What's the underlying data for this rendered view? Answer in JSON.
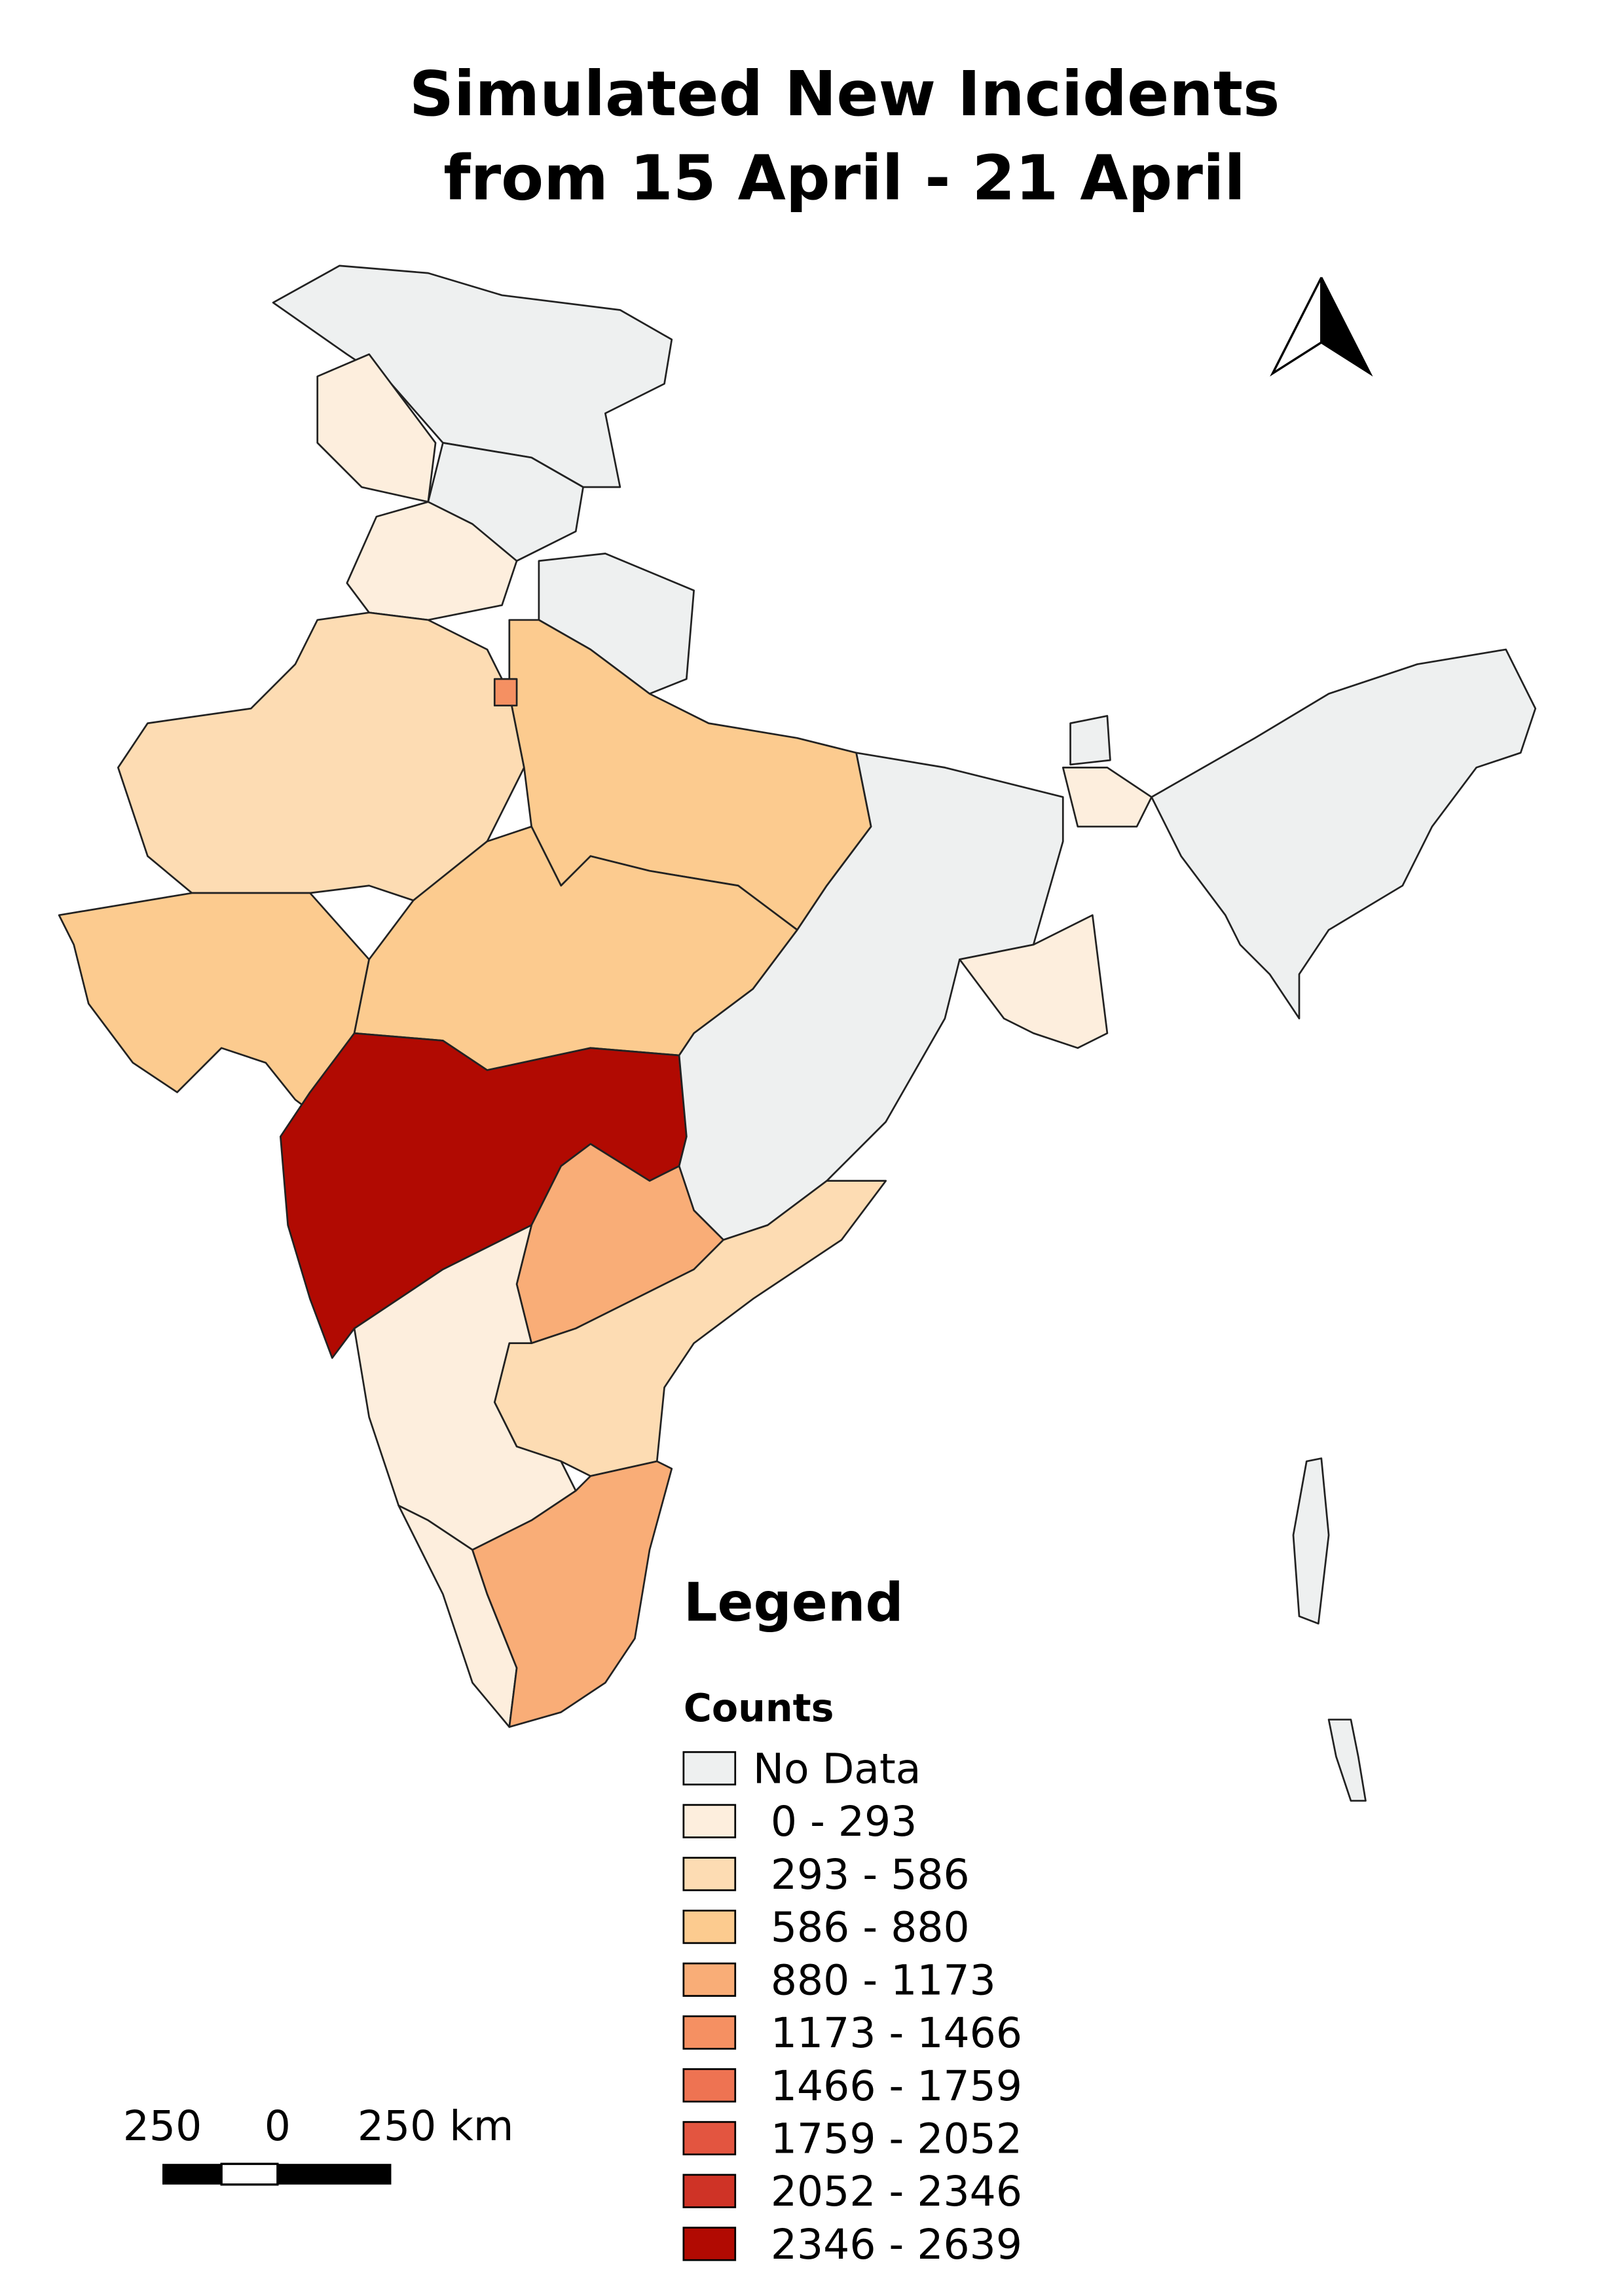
{
  "title": [
    "Simulated New Incidents",
    "from 15 April - 21 April"
  ],
  "legend": {
    "title": "Legend",
    "subtitle": "Counts",
    "items": [
      {
        "label": "No Data",
        "color": "#eef0f0"
      },
      {
        "label": "0 - 293",
        "color": "#fdeedd"
      },
      {
        "label": "293 - 586",
        "color": "#fddcb3"
      },
      {
        "label": "586 - 880",
        "color": "#fccb8f"
      },
      {
        "label": "880 - 1173",
        "color": "#f9ad77"
      },
      {
        "label": "1173 - 1466",
        "color": "#f59062"
      },
      {
        "label": "1466 - 1759",
        "color": "#ee7352"
      },
      {
        "label": "1759 - 2052",
        "color": "#e35540"
      },
      {
        "label": "2052 - 2346",
        "color": "#cf3326"
      },
      {
        "label": "2346 - 2639",
        "color": "#b10a02"
      }
    ]
  },
  "scale_bar": {
    "labels": [
      "250",
      "0",
      "250 km"
    ]
  }
}
